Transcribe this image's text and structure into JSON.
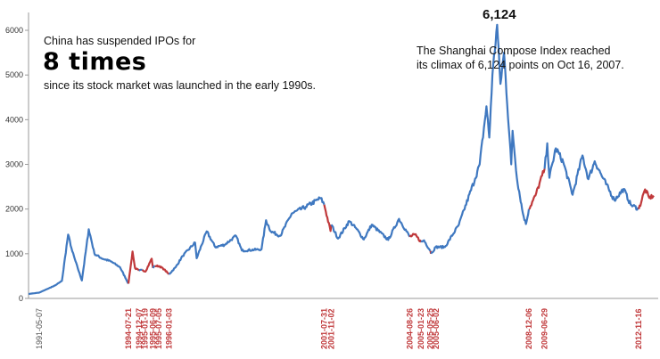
{
  "annotations": {
    "left_line1": "China has suspended IPOs for",
    "left_big": "8 times",
    "left_line3": "since its stock market was launched in the early 1990s.",
    "peak_value": "6,124",
    "right_line1": "The Shanghai Compose Index reached",
    "right_line2": "its climax of 6,124 points on Oct 16, 2007."
  },
  "chart_data": {
    "type": "line",
    "title": "",
    "xlabel": "",
    "ylabel": "",
    "ylim": [
      0,
      6200
    ],
    "yticks": [
      "0",
      "1000",
      "2000",
      "3000",
      "4000",
      "5000",
      "6000"
    ],
    "grid": false,
    "colors": {
      "normal": "#3f78c0",
      "suspended": "#c0393b",
      "axis": "#9a9a9a",
      "tick_label": "#333333",
      "date_label_normal": "#555555",
      "date_label_suspended": "#c0393b"
    },
    "date_labels": [
      {
        "label": "1991-05-07",
        "date": "1991-05-07",
        "suspended": false
      },
      {
        "label": "1994-07-21",
        "date": "1994-07-21",
        "suspended": true
      },
      {
        "label": "1994-12-07",
        "date": "1994-12-07",
        "suspended": true
      },
      {
        "label": "1995-01-19",
        "date": "1995-01-19",
        "suspended": true
      },
      {
        "label": "1995-06-09",
        "date": "1995-06-09",
        "suspended": true
      },
      {
        "label": "1995-07-05",
        "date": "1995-07-05",
        "suspended": true
      },
      {
        "label": "1996-01-03",
        "date": "1996-01-03",
        "suspended": true
      },
      {
        "label": "2001-07-31",
        "date": "2001-07-31",
        "suspended": true
      },
      {
        "label": "2001-11-02",
        "date": "2001-11-02",
        "suspended": true
      },
      {
        "label": "2004-08-26",
        "date": "2004-08-26",
        "suspended": true
      },
      {
        "label": "2005-01-23",
        "date": "2005-01-23",
        "suspended": true
      },
      {
        "label": "2005-05-25",
        "date": "2005-05-25",
        "suspended": true
      },
      {
        "label": "2005-06-02",
        "date": "2005-06-02",
        "suspended": true
      },
      {
        "label": "2008-12-06",
        "date": "2008-12-06",
        "suspended": true
      },
      {
        "label": "2009-06-29",
        "date": "2009-06-29",
        "suspended": true
      },
      {
        "label": "2012-11-16",
        "date": "2012-11-16",
        "suspended": true
      }
    ],
    "series": [
      {
        "values": [
          [
            "1990-12-19",
            100
          ],
          [
            "1991-05-07",
            130
          ],
          [
            "1991-12-01",
            290
          ],
          [
            "1992-03-01",
            390
          ],
          [
            "1992-05-21",
            1430
          ],
          [
            "1992-07-15",
            1050
          ],
          [
            "1992-11-17",
            400
          ],
          [
            "1993-02-16",
            1550
          ],
          [
            "1993-05-01",
            1000
          ],
          [
            "1993-08-01",
            900
          ],
          [
            "1993-12-01",
            830
          ],
          [
            "1994-04-01",
            700
          ],
          [
            "1994-07-21",
            330
          ],
          [
            "1994-09-13",
            1050
          ],
          [
            "1994-10-15",
            680
          ],
          [
            "1994-12-07",
            620
          ],
          [
            "1995-01-19",
            640
          ],
          [
            "1995-03-01",
            600
          ],
          [
            "1995-05-22",
            890
          ],
          [
            "1995-06-09",
            680
          ],
          [
            "1995-07-05",
            730
          ],
          [
            "1995-09-01",
            720
          ],
          [
            "1995-11-01",
            650
          ],
          [
            "1996-01-03",
            540
          ],
          [
            "1996-04-01",
            700
          ],
          [
            "1996-07-01",
            950
          ],
          [
            "1996-12-11",
            1250
          ],
          [
            "1997-01-01",
            900
          ],
          [
            "1997-05-12",
            1500
          ],
          [
            "1997-09-01",
            1150
          ],
          [
            "1998-01-01",
            1200
          ],
          [
            "1998-06-01",
            1400
          ],
          [
            "1998-08-17",
            1070
          ],
          [
            "1999-05-01",
            1100
          ],
          [
            "1999-06-30",
            1750
          ],
          [
            "1999-09-01",
            1500
          ],
          [
            "2000-01-01",
            1400
          ],
          [
            "2000-06-01",
            1900
          ],
          [
            "2000-12-01",
            2050
          ],
          [
            "2001-06-14",
            2245
          ],
          [
            "2001-07-31",
            2100
          ],
          [
            "2001-10-22",
            1510
          ],
          [
            "2001-11-02",
            1650
          ],
          [
            "2002-01-29",
            1340
          ],
          [
            "2002-06-25",
            1730
          ],
          [
            "2002-10-01",
            1550
          ],
          [
            "2003-01-01",
            1320
          ],
          [
            "2003-04-16",
            1650
          ],
          [
            "2003-11-18",
            1310
          ],
          [
            "2004-04-07",
            1780
          ],
          [
            "2004-08-26",
            1380
          ],
          [
            "2004-11-01",
            1430
          ],
          [
            "2005-01-23",
            1260
          ],
          [
            "2005-03-01",
            1300
          ],
          [
            "2005-05-25",
            1060
          ],
          [
            "2005-06-02",
            1000
          ],
          [
            "2005-08-01",
            1150
          ],
          [
            "2005-12-01",
            1150
          ],
          [
            "2006-06-01",
            1650
          ],
          [
            "2006-12-31",
            2680
          ],
          [
            "2007-03-01",
            3000
          ],
          [
            "2007-05-29",
            4300
          ],
          [
            "2007-07-05",
            3600
          ],
          [
            "2007-08-15",
            5000
          ],
          [
            "2007-10-16",
            6124
          ],
          [
            "2007-11-28",
            4800
          ],
          [
            "2008-01-14",
            5500
          ],
          [
            "2008-04-18",
            3000
          ],
          [
            "2008-05-06",
            3750
          ],
          [
            "2008-07-01",
            2700
          ],
          [
            "2008-09-18",
            1900
          ],
          [
            "2008-10-28",
            1665
          ],
          [
            "2008-12-06",
            2000
          ],
          [
            "2009-03-01",
            2300
          ],
          [
            "2009-06-29",
            2900
          ],
          [
            "2009-08-04",
            3470
          ],
          [
            "2009-09-01",
            2700
          ],
          [
            "2009-11-24",
            3360
          ],
          [
            "2010-03-01",
            3050
          ],
          [
            "2010-07-02",
            2320
          ],
          [
            "2010-11-08",
            3200
          ],
          [
            "2011-01-25",
            2670
          ],
          [
            "2011-04-18",
            3070
          ],
          [
            "2011-08-01",
            2700
          ],
          [
            "2011-12-31",
            2200
          ],
          [
            "2012-05-01",
            2450
          ],
          [
            "2012-08-01",
            2100
          ],
          [
            "2012-11-16",
            2000
          ],
          [
            "2013-02-06",
            2440
          ],
          [
            "2013-04-01",
            2250
          ],
          [
            "2013-05-31",
            2300
          ]
        ],
        "suspended_periods": [
          [
            "1994-07-21",
            "1994-12-07"
          ],
          [
            "1995-01-19",
            "1995-06-09"
          ],
          [
            "1995-07-05",
            "1996-01-03"
          ],
          [
            "2001-07-31",
            "2001-11-02"
          ],
          [
            "2004-08-26",
            "2005-01-23"
          ],
          [
            "2005-05-25",
            "2005-06-02"
          ],
          [
            "2008-12-06",
            "2009-06-29"
          ],
          [
            "2012-11-16",
            "2013-05-31"
          ]
        ]
      }
    ]
  }
}
